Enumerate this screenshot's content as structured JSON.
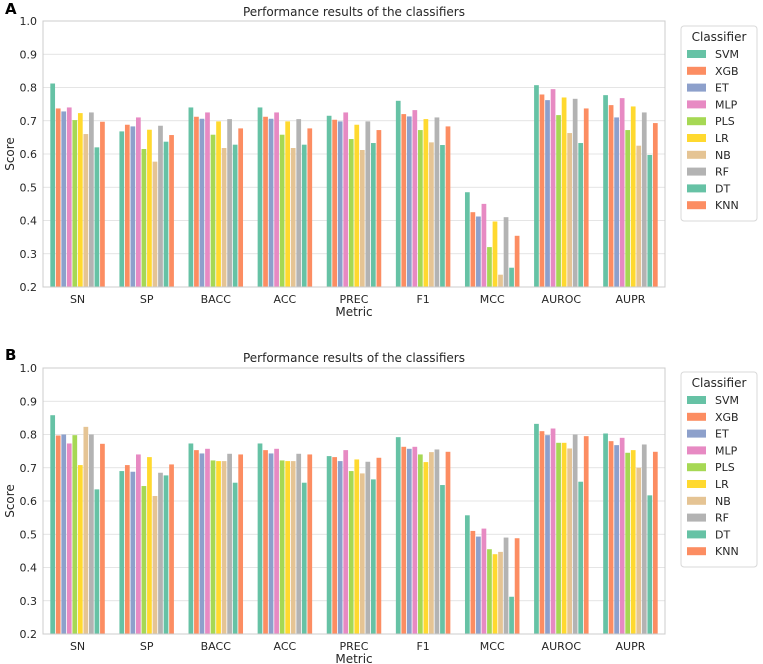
{
  "chart_data": [
    {
      "panel": "A",
      "type": "bar",
      "title": "Performance results of the classifiers",
      "xlabel": "Metric",
      "ylabel": "Score",
      "ylim": [
        0.2,
        1.0
      ],
      "yticks": [
        "0.2",
        "0.3",
        "0.4",
        "0.5",
        "0.6",
        "0.7",
        "0.8",
        "0.9",
        "1.0"
      ],
      "grid": true,
      "legend": "outside-right",
      "legend_title": "Classifier",
      "categories": [
        "SN",
        "SP",
        "BACC",
        "ACC",
        "PREC",
        "F1",
        "MCC",
        "AUROC",
        "AUPR"
      ],
      "series": [
        {
          "name": "SVM",
          "values": [
            0.812,
            0.668,
            0.74,
            0.74,
            0.715,
            0.76,
            0.485,
            0.807,
            0.777
          ]
        },
        {
          "name": "XGB",
          "values": [
            0.737,
            0.688,
            0.712,
            0.712,
            0.703,
            0.72,
            0.425,
            0.779,
            0.747
          ]
        },
        {
          "name": "ET",
          "values": [
            0.728,
            0.683,
            0.706,
            0.706,
            0.698,
            0.713,
            0.412,
            0.762,
            0.71
          ]
        },
        {
          "name": "MLP",
          "values": [
            0.74,
            0.71,
            0.725,
            0.725,
            0.725,
            0.732,
            0.45,
            0.795,
            0.768
          ]
        },
        {
          "name": "PLS",
          "values": [
            0.702,
            0.615,
            0.658,
            0.658,
            0.645,
            0.672,
            0.32,
            0.717,
            0.672
          ]
        },
        {
          "name": "LR",
          "values": [
            0.723,
            0.673,
            0.698,
            0.698,
            0.688,
            0.705,
            0.397,
            0.77,
            0.743
          ]
        },
        {
          "name": "NB",
          "values": [
            0.66,
            0.577,
            0.618,
            0.618,
            0.612,
            0.635,
            0.237,
            0.663,
            0.625
          ]
        },
        {
          "name": "RF",
          "values": [
            0.725,
            0.685,
            0.705,
            0.705,
            0.698,
            0.71,
            0.41,
            0.766,
            0.725
          ]
        },
        {
          "name": "DT",
          "values": [
            0.62,
            0.637,
            0.628,
            0.628,
            0.633,
            0.627,
            0.258,
            0.633,
            0.597
          ]
        },
        {
          "name": "KNN",
          "values": [
            0.697,
            0.657,
            0.677,
            0.677,
            0.672,
            0.683,
            0.354,
            0.737,
            0.693
          ]
        }
      ]
    },
    {
      "panel": "B",
      "type": "bar",
      "title": "Performance results of the classifiers",
      "xlabel": "Metric",
      "ylabel": "Score",
      "ylim": [
        0.2,
        1.0
      ],
      "yticks": [
        "0.2",
        "0.3",
        "0.4",
        "0.5",
        "0.6",
        "0.7",
        "0.8",
        "0.9",
        "1.0"
      ],
      "grid": true,
      "legend": "outside-right",
      "legend_title": "Classifier",
      "categories": [
        "SN",
        "SP",
        "BACC",
        "ACC",
        "PREC",
        "F1",
        "MCC",
        "AUROC",
        "AUPR"
      ],
      "series": [
        {
          "name": "SVM",
          "values": [
            0.858,
            0.69,
            0.773,
            0.773,
            0.735,
            0.792,
            0.557,
            0.832,
            0.803
          ]
        },
        {
          "name": "XGB",
          "values": [
            0.797,
            0.708,
            0.753,
            0.753,
            0.732,
            0.763,
            0.51,
            0.81,
            0.78
          ]
        },
        {
          "name": "ET",
          "values": [
            0.8,
            0.688,
            0.743,
            0.743,
            0.72,
            0.757,
            0.493,
            0.798,
            0.768
          ]
        },
        {
          "name": "MLP",
          "values": [
            0.773,
            0.74,
            0.757,
            0.757,
            0.753,
            0.763,
            0.517,
            0.818,
            0.79
          ]
        },
        {
          "name": "PLS",
          "values": [
            0.798,
            0.645,
            0.722,
            0.722,
            0.69,
            0.74,
            0.455,
            0.775,
            0.745
          ]
        },
        {
          "name": "LR",
          "values": [
            0.708,
            0.732,
            0.72,
            0.72,
            0.725,
            0.717,
            0.44,
            0.775,
            0.753
          ]
        },
        {
          "name": "NB",
          "values": [
            0.823,
            0.615,
            0.72,
            0.72,
            0.683,
            0.747,
            0.447,
            0.758,
            0.7
          ]
        },
        {
          "name": "RF",
          "values": [
            0.8,
            0.685,
            0.742,
            0.742,
            0.718,
            0.755,
            0.49,
            0.8,
            0.77
          ]
        },
        {
          "name": "DT",
          "values": [
            0.635,
            0.677,
            0.655,
            0.655,
            0.665,
            0.648,
            0.312,
            0.658,
            0.617
          ]
        },
        {
          "name": "KNN",
          "values": [
            0.772,
            0.71,
            0.74,
            0.74,
            0.73,
            0.748,
            0.488,
            0.795,
            0.748
          ]
        }
      ]
    }
  ],
  "colors": [
    "#66c2a5",
    "#fc8d62",
    "#8da0cb",
    "#e78ac3",
    "#a6d854",
    "#ffd92f",
    "#e5c494",
    "#b3b3b3",
    "#66c2a5",
    "#fc8d62"
  ]
}
